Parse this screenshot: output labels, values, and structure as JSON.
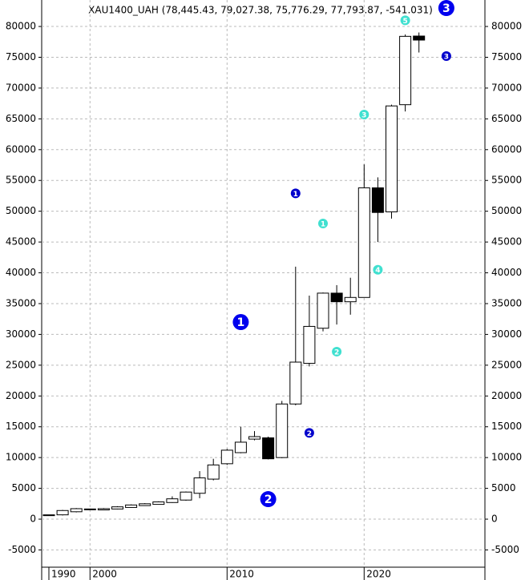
{
  "chart_data": {
    "type": "candlestick",
    "title": "XAU1400_UAH (78,445.43, 79,027.38, 75,776.29, 77,793.87, -541.031)",
    "categories": [
      "1990",
      null,
      null,
      "2000",
      null,
      null,
      null,
      null,
      null,
      null,
      null,
      null,
      null,
      "2010",
      null,
      null,
      null,
      null,
      null,
      null,
      null,
      null,
      null,
      "2020",
      null,
      null,
      null,
      null
    ],
    "open": [
      600,
      700,
      1200,
      1600,
      1500,
      1650,
      1900,
      2200,
      2400,
      2700,
      3100,
      4200,
      6500,
      9000,
      10800,
      13000,
      13200,
      10000,
      18700,
      25300,
      31000,
      36700,
      35300,
      36000,
      53800,
      49900,
      67300,
      78445
    ],
    "high": [
      700,
      1500,
      1800,
      1700,
      1800,
      2100,
      2400,
      2600,
      2900,
      3700,
      4500,
      7800,
      9800,
      11400,
      15000,
      14300,
      13400,
      19200,
      41000,
      36300,
      36800,
      38000,
      39200,
      57600,
      55500,
      67300,
      78700,
      79027
    ],
    "low": [
      550,
      600,
      1100,
      1550,
      1450,
      1600,
      1850,
      2150,
      2350,
      2650,
      3000,
      3400,
      6300,
      8800,
      10700,
      12800,
      9700,
      9900,
      18500,
      24800,
      30500,
      31600,
      33200,
      36000,
      45000,
      48800,
      66200,
      75776
    ],
    "close": [
      700,
      1400,
      1700,
      1650,
      1700,
      2000,
      2300,
      2500,
      2800,
      3300,
      4400,
      6700,
      8800,
      11200,
      12500,
      13400,
      9800,
      18700,
      25500,
      31300,
      36700,
      35300,
      36000,
      53800,
      49800,
      67100,
      78400,
      77794
    ],
    "up_color": "#ffffff",
    "down_color": "#000000",
    "edge_color": "#000000",
    "ylim": [
      -7800,
      84300
    ],
    "yticks": [
      -5000,
      0,
      5000,
      10000,
      15000,
      20000,
      25000,
      30000,
      35000,
      40000,
      45000,
      50000,
      55000,
      60000,
      65000,
      70000,
      75000,
      80000
    ],
    "grid": true,
    "annotations": [
      {
        "text": "1",
        "x": 14,
        "y": 32000,
        "color": "#0000ee",
        "size": "large"
      },
      {
        "text": "2",
        "x": 16,
        "y": 3250,
        "color": "#0000ee",
        "size": "large"
      },
      {
        "text": "3",
        "x": 29,
        "y": 83000,
        "color": "#0000ee",
        "size": "large"
      },
      {
        "text": "1",
        "x": 18,
        "y": 52900,
        "color": "#0000cc",
        "size": "small"
      },
      {
        "text": "2",
        "x": 19,
        "y": 14000,
        "color": "#0000cc",
        "size": "small"
      },
      {
        "text": "3",
        "x": 29,
        "y": 75200,
        "color": "#0000cc",
        "size": "small"
      },
      {
        "text": "1",
        "x": 20,
        "y": 48000,
        "color": "#40e0d0",
        "size": "small"
      },
      {
        "text": "2",
        "x": 21,
        "y": 27200,
        "color": "#40e0d0",
        "size": "small"
      },
      {
        "text": "3",
        "x": 23,
        "y": 65700,
        "color": "#40e0d0",
        "size": "small"
      },
      {
        "text": "4",
        "x": 24,
        "y": 40500,
        "color": "#40e0d0",
        "size": "small"
      },
      {
        "text": "5",
        "x": 26,
        "y": 81000,
        "color": "#40e0d0",
        "size": "small"
      }
    ]
  }
}
